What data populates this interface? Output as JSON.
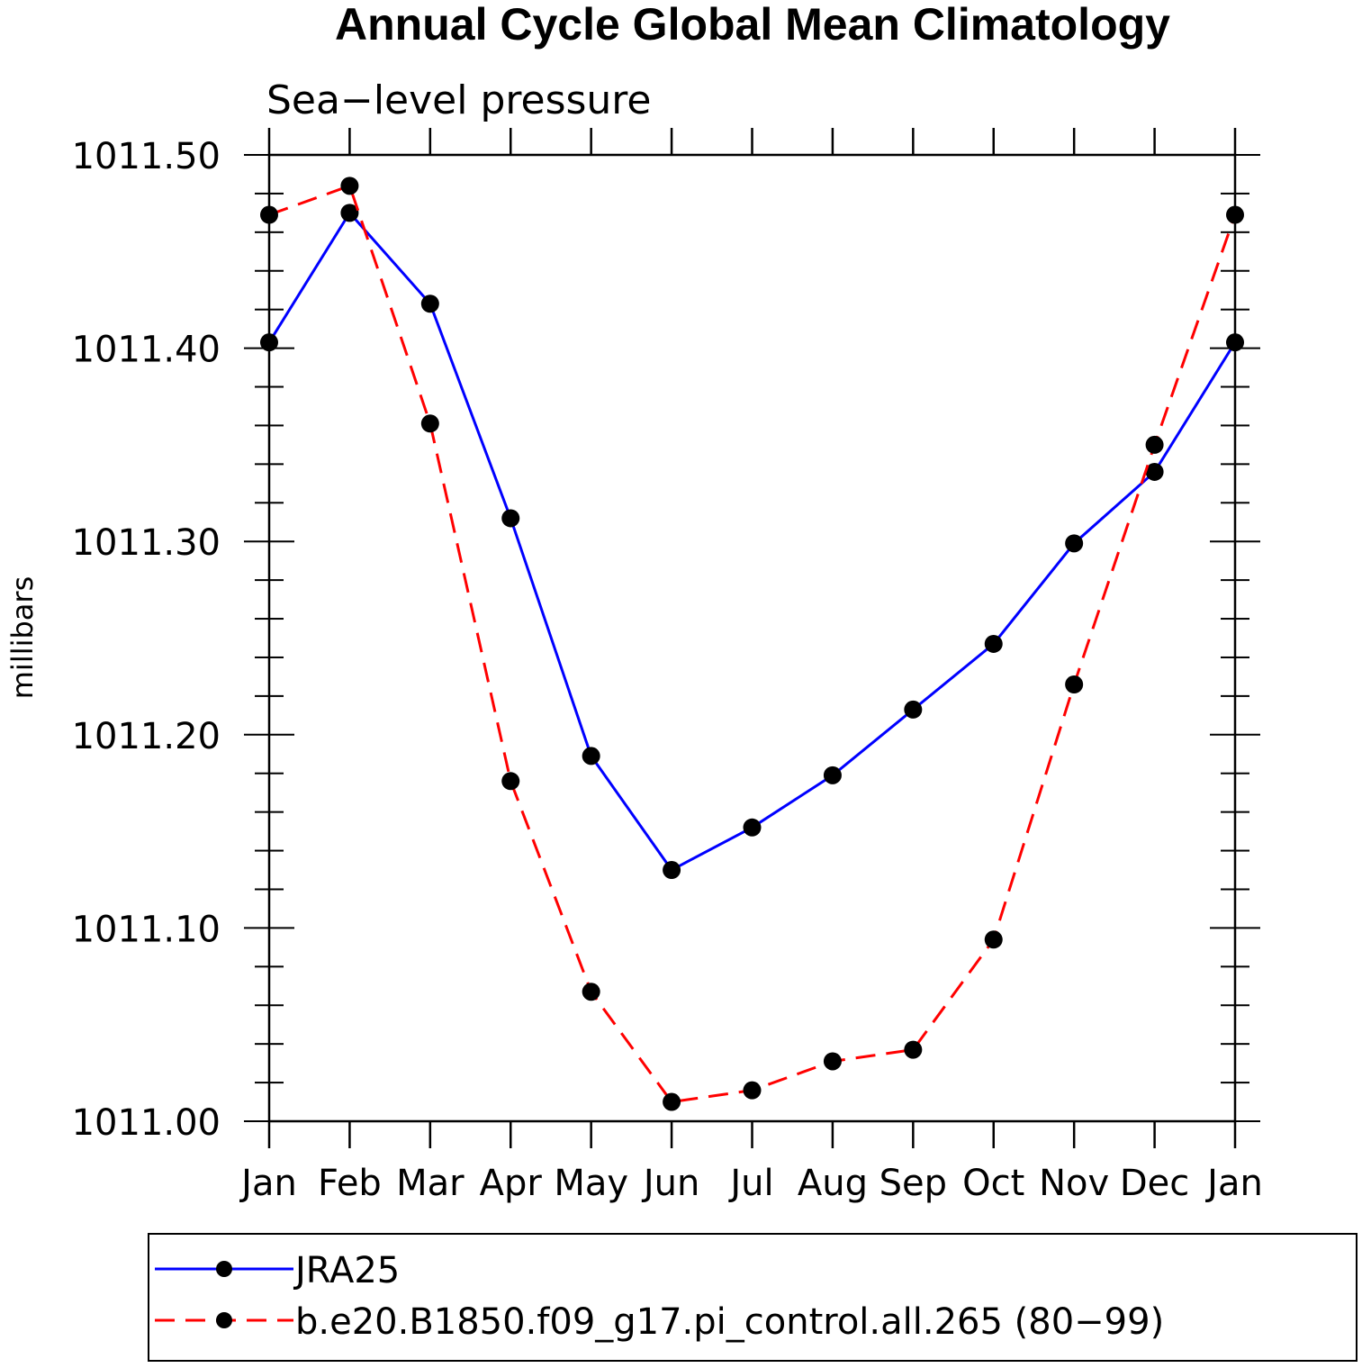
{
  "chart_data": {
    "type": "line",
    "title": "Annual Cycle Global Mean Climatology",
    "subtitle": "Sea−level pressure",
    "ylabel": "millibars",
    "xlabel": "",
    "categories": [
      "Jan",
      "Feb",
      "Mar",
      "Apr",
      "May",
      "Jun",
      "Jul",
      "Aug",
      "Sep",
      "Oct",
      "Nov",
      "Dec",
      "Jan"
    ],
    "ylim": [
      1011.0,
      1011.5
    ],
    "yticks": [
      1011.0,
      1011.1,
      1011.2,
      1011.3,
      1011.4,
      1011.5
    ],
    "ytick_labels": [
      "1011.00",
      "1011.10",
      "1011.20",
      "1011.30",
      "1011.40",
      "1011.50"
    ],
    "grid": false,
    "legend_position": "bottom",
    "series": [
      {
        "name": "JRA25",
        "color": "#0000ff",
        "style": "solid",
        "marker": "filled-circle",
        "values": [
          1011.403,
          1011.47,
          1011.423,
          1011.312,
          1011.189,
          1011.13,
          1011.152,
          1011.179,
          1011.213,
          1011.247,
          1011.299,
          1011.336,
          1011.403
        ]
      },
      {
        "name": "b.e20.B1850.f09_g17.pi_control.all.265 (80−99)",
        "color": "#ff0000",
        "style": "dashed",
        "marker": "filled-circle",
        "values": [
          1011.469,
          1011.484,
          1011.361,
          1011.176,
          1011.067,
          1011.01,
          1011.016,
          1011.031,
          1011.037,
          1011.094,
          1011.226,
          1011.35,
          1011.469
        ]
      }
    ]
  }
}
